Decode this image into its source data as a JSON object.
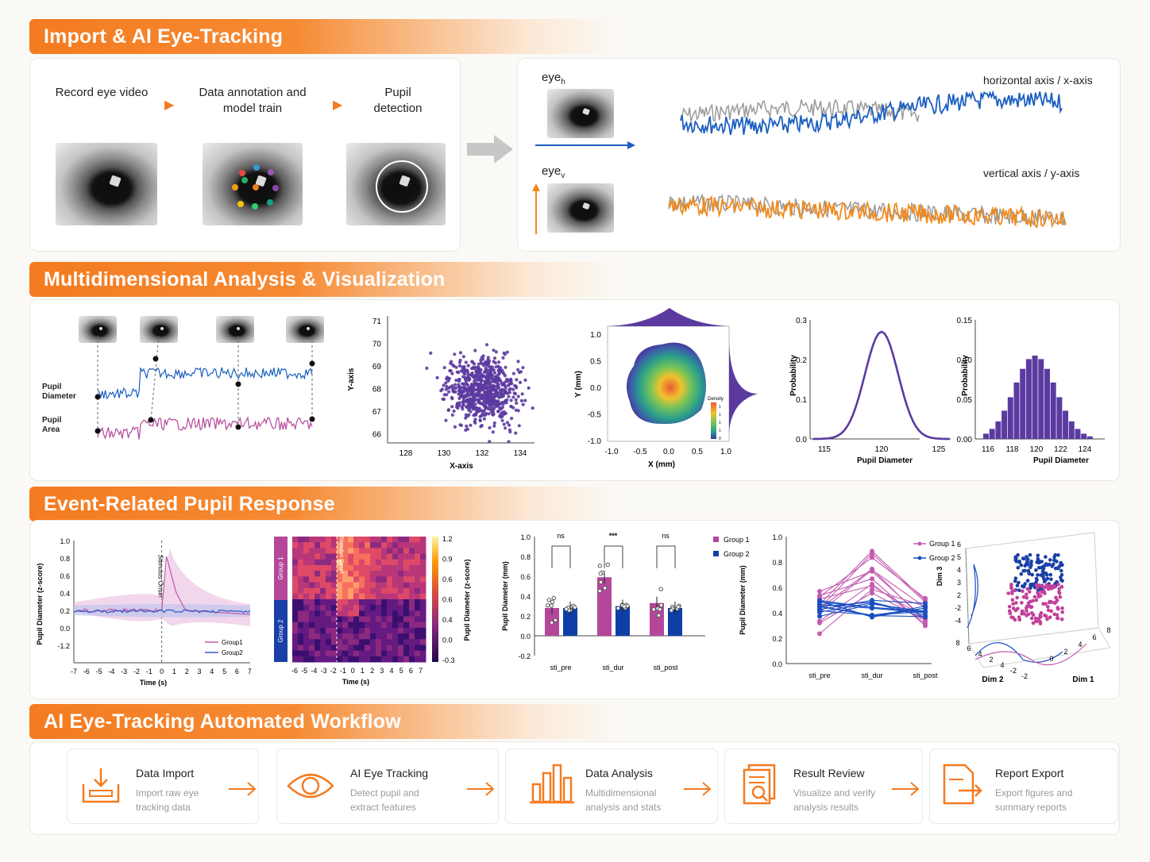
{
  "sections": {
    "s1": "Import & AI Eye-Tracking",
    "s2": "Multidimensional Analysis & Visualization",
    "s3": "Event-Related Pupil Response",
    "s4": "AI Eye-Tracking Automated Workflow"
  },
  "pipeline": {
    "step1": "Record eye video",
    "step2": "Data annotation and model train",
    "step3": "Pupil detection"
  },
  "signals": {
    "eye_h": "eye",
    "eye_h_sub": "h",
    "eye_v": "eye",
    "eye_v_sub": "v",
    "h_label": "horizontal axis / x-axis",
    "v_label": "vertical axis / y-axis"
  },
  "multi": {
    "pupil_diameter": "Pupil Diameter",
    "pupil_area": "Pupil Area",
    "scatter_x": [
      "128",
      "130",
      "132",
      "134"
    ],
    "scatter_y": [
      "71",
      "70",
      "69",
      "68",
      "67",
      "66"
    ],
    "scatter_xlabel": "X-axis",
    "scatter_ylabel": "Y-axis",
    "density_x": [
      "-1.0",
      "-0.5",
      "0.0",
      "0.5",
      "1.0"
    ],
    "density_y": [
      "1.0",
      "0.5",
      "0.0",
      "-0.5",
      "-1.0"
    ],
    "density_xlabel": "X (mm)",
    "density_ylabel": "Y (mm)",
    "density_legend": "Density",
    "density_ticks": [
      "1",
      "1",
      "1",
      "1",
      "0"
    ],
    "dist_y": [
      "0.3",
      "0.2",
      "0.1",
      "0.0"
    ],
    "dist_x": [
      "115",
      "120",
      "125"
    ],
    "dist_xlabel": "Pupil Diameter",
    "dist_ylabel": "Probability",
    "hist_y": [
      "0.15",
      "0.10",
      "0.05",
      "0.00"
    ],
    "hist_x": [
      "116",
      "118",
      "120",
      "122",
      "124"
    ],
    "hist_xlabel": "Pupil Diameter",
    "hist_ylabel": "Probability"
  },
  "event": {
    "erp_y": [
      "1.0",
      "0.8",
      "0.6",
      "0.4",
      "0.2",
      "0.0",
      "-1.2"
    ],
    "erp_x": [
      "-7",
      "-6",
      "-5",
      "-4",
      "-3",
      "-2",
      "-1",
      "0",
      "1",
      "2",
      "3",
      "4",
      "5",
      "6",
      "7"
    ],
    "erp_ylabel": "Pupil Diameter (z-score)",
    "erp_xlabel": "Time (s)",
    "erp_onset": "Stimulus Onset",
    "erp_legend1": "Group1",
    "erp_legend2": "Group2",
    "hm_group1": "Group 1",
    "hm_group2": "Group 2",
    "hm_x": [
      "-6",
      "-5",
      "-4",
      "-3",
      "-2",
      "-1",
      "0",
      "1",
      "2",
      "3",
      "4",
      "5",
      "6",
      "7"
    ],
    "hm_xlabel": "Time (s)",
    "hm_onset": "Stimulus Onset",
    "hm_cb": [
      "1.2",
      "0.9",
      "0.6",
      "0.6",
      "0.4",
      "0.0",
      "-0.3"
    ],
    "hm_cblabel": "Pupil Diameter (z-score)",
    "bar_y": [
      "1.0",
      "0.8",
      "0.6",
      "0.4",
      "0.2",
      "0.0",
      "-0.2"
    ],
    "bar_ylabel": "Pupil Diameter (mm)",
    "bar_x": [
      "sti_pre",
      "sti_dur",
      "sti_post"
    ],
    "bar_sig": [
      "ns",
      "***",
      "ns"
    ],
    "bar_legend1": "Group 1",
    "bar_legend2": "Group 2",
    "line_y": [
      "1.0",
      "0.8",
      "0.6",
      "0.4",
      "0.2",
      "0.0"
    ],
    "line_ylabel": "Pupil Diameter (mm)",
    "line_x": [
      "sti_pre",
      "sti_dur",
      "sti_post"
    ],
    "line_legend1": "Group 1",
    "line_legend2": "Group 2",
    "d3_z": [
      "6",
      "5",
      "4",
      "3",
      "2",
      "-2",
      "-4"
    ],
    "d3_zlabel": "Dim 3",
    "d3_dim2": [
      "8",
      "6",
      "4",
      "2",
      "4",
      "-2",
      "-2"
    ],
    "d3_dim1": [
      "0",
      "2",
      "4",
      "6",
      "8"
    ],
    "d3_dim2label": "Dim 2",
    "d3_dim1label": "Dim 1"
  },
  "workflow": [
    {
      "title": "Data Import",
      "desc": "Import raw eye tracking data",
      "icon": "import-icon"
    },
    {
      "title": "AI Eye Tracking",
      "desc": "Detect pupil and extract features",
      "icon": "eye-icon"
    },
    {
      "title": "Data Analysis",
      "desc": "Multidimensional analysis and stats",
      "icon": "bar-chart-icon"
    },
    {
      "title": "Result Review",
      "desc": "Visualize and verify analysis results",
      "icon": "review-icon"
    },
    {
      "title": "Report Export",
      "desc": "Export figures and summary reports",
      "icon": "export-icon"
    }
  ],
  "colors": {
    "accent": "#f47b20",
    "blue": "#1a5fc0",
    "magenta": "#b5479b",
    "purple": "#5b3aa0",
    "orange_trace": "#f08a1c",
    "navy": "#0f3fa6"
  },
  "chart_data": [
    {
      "type": "line",
      "title": "",
      "xlabel": "Time (s)",
      "ylabel": "Pupil Diameter (z-score)",
      "x": [
        -7,
        -6,
        -5,
        -4,
        -3,
        -2,
        -1,
        0,
        0.5,
        1,
        1.5,
        2,
        3,
        4,
        5,
        6,
        7
      ],
      "series": [
        {
          "name": "Group1",
          "values": [
            0.38,
            0.35,
            0.37,
            0.36,
            0.38,
            0.37,
            0.38,
            0.4,
            0.82,
            0.62,
            0.45,
            0.38,
            0.37,
            0.36,
            0.37,
            0.35,
            0.33
          ]
        },
        {
          "name": "Group2",
          "values": [
            0.36,
            0.37,
            0.38,
            0.37,
            0.38,
            0.38,
            0.37,
            0.39,
            0.4,
            0.39,
            0.38,
            0.37,
            0.36,
            0.37,
            0.37,
            0.36,
            0.38
          ]
        }
      ],
      "ylim": [
        -1.2,
        1.0
      ]
    },
    {
      "type": "bar",
      "title": "",
      "xlabel": "",
      "ylabel": "Pupil Diameter (mm)",
      "categories": [
        "sti_pre",
        "sti_dur",
        "sti_post"
      ],
      "series": [
        {
          "name": "Group 1",
          "values": [
            0.28,
            0.59,
            0.33
          ]
        },
        {
          "name": "Group 2",
          "values": [
            0.28,
            0.3,
            0.28
          ]
        }
      ],
      "ylim": [
        -0.2,
        1.0
      ]
    },
    {
      "type": "line",
      "title": "",
      "xlabel": "",
      "ylabel": "Pupil Diameter (mm)",
      "categories": [
        "sti_pre",
        "sti_dur",
        "sti_post"
      ],
      "series": [
        {
          "name": "Group 1",
          "values": [
            0.42,
            0.78,
            0.45
          ]
        },
        {
          "name": "Group 2",
          "values": [
            0.4,
            0.42,
            0.41
          ]
        }
      ],
      "ylim": [
        0.0,
        1.0
      ]
    },
    {
      "type": "bar",
      "title": "",
      "xlabel": "Pupil Diameter",
      "ylabel": "Probability",
      "categories": [
        "116",
        "117",
        "118",
        "119",
        "120",
        "121",
        "122",
        "123",
        "124"
      ],
      "values": [
        0.005,
        0.015,
        0.035,
        0.07,
        0.105,
        0.09,
        0.06,
        0.03,
        0.01
      ],
      "ylim": [
        0.0,
        0.15
      ]
    },
    {
      "type": "line",
      "title": "",
      "xlabel": "Pupil Diameter",
      "ylabel": "Probability",
      "x": [
        115,
        116,
        117,
        118,
        119,
        120,
        121,
        122,
        123,
        124,
        125
      ],
      "values": [
        0.0,
        0.01,
        0.04,
        0.11,
        0.2,
        0.27,
        0.21,
        0.11,
        0.04,
        0.01,
        0.0
      ],
      "ylim": [
        0.0,
        0.3
      ]
    }
  ]
}
